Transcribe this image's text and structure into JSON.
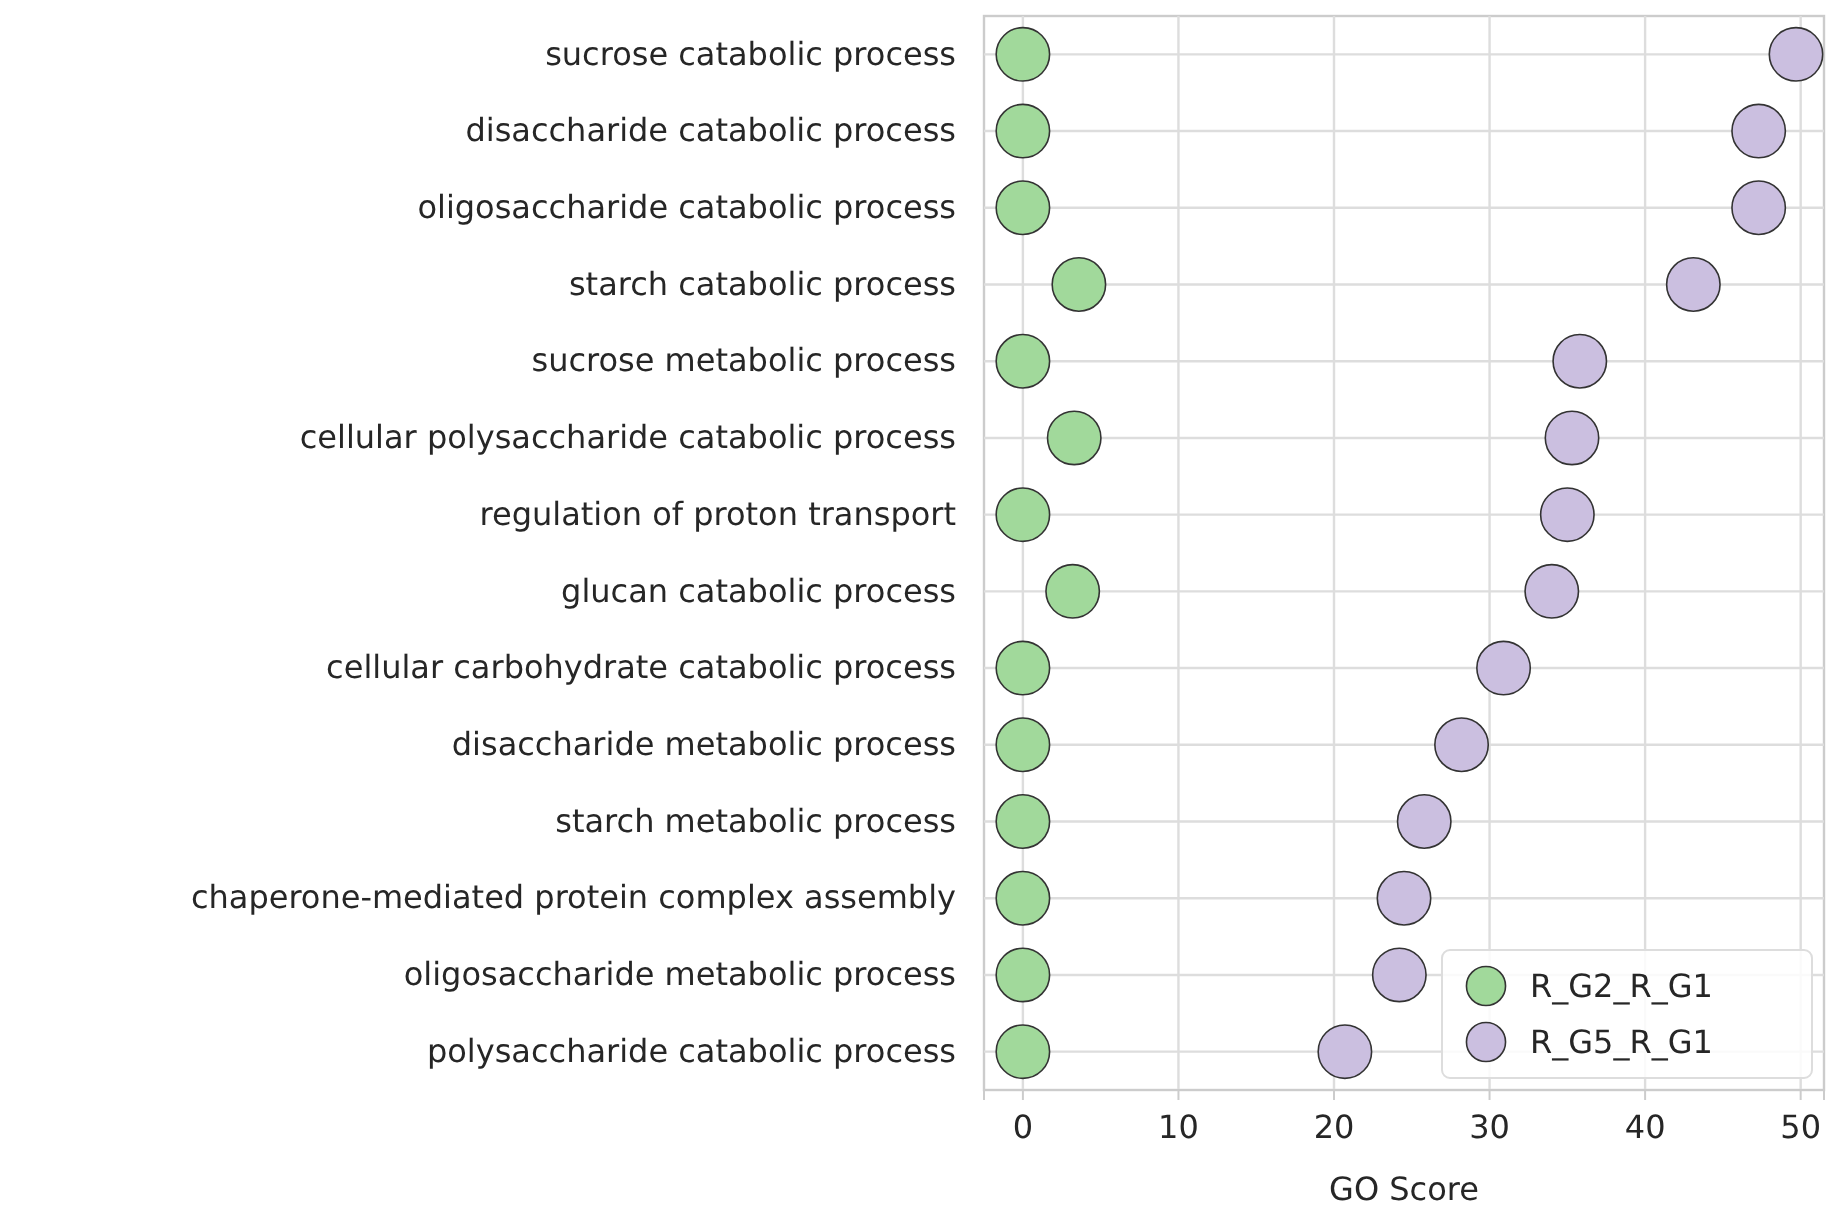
{
  "chart_data": {
    "type": "scatter",
    "xlabel": "GO Score",
    "categories": [
      "sucrose catabolic process",
      "disaccharide catabolic process",
      "oligosaccharide catabolic process",
      "starch catabolic process",
      "sucrose metabolic process",
      "cellular polysaccharide catabolic process",
      "regulation of proton transport",
      "glucan catabolic process",
      "cellular carbohydrate catabolic process",
      "disaccharide metabolic process",
      "starch metabolic process",
      "chaperone-mediated protein complex assembly",
      "oligosaccharide metabolic process",
      "polysaccharide catabolic process"
    ],
    "orientation": "horizontal",
    "series": [
      {
        "name": "R_G2_R_G1",
        "color": "#a1d99b",
        "values": [
          0,
          0,
          0,
          3.6,
          0,
          3.3,
          0,
          3.2,
          0,
          0,
          0,
          0,
          0,
          0
        ]
      },
      {
        "name": "R_G5_R_G1",
        "color": "#cbbfe0",
        "values": [
          49.7,
          47.3,
          47.3,
          43.1,
          35.8,
          35.3,
          35.0,
          34.0,
          30.9,
          28.2,
          25.8,
          24.5,
          24.2,
          20.7
        ]
      }
    ],
    "xlim": [
      -2.5,
      51.5
    ],
    "xticks": [
      0,
      10,
      20,
      30,
      40,
      50
    ],
    "grid": true,
    "legend": "bottom right",
    "marker": "circle"
  }
}
